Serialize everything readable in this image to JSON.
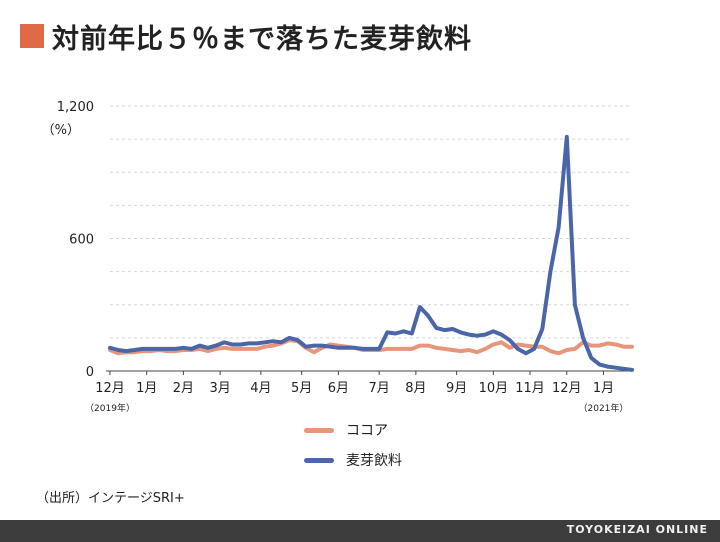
{
  "title": "対前年比５％まで落ちた麦芽飲料",
  "chart_data": {
    "type": "line",
    "title": "対前年比５％まで落ちた麦芽飲料",
    "ylabel": "（%）",
    "ylim": [
      0,
      1200
    ],
    "yticks": [
      {
        "value": 0,
        "label": "0"
      },
      {
        "value": 600,
        "label": "600"
      },
      {
        "value": 1200,
        "label": "1,200"
      }
    ],
    "grid": true,
    "legend_position": "bottom",
    "x_ticks": [
      {
        "label": "12月",
        "index": 0
      },
      {
        "label": "1月",
        "index": 4.5
      },
      {
        "label": "2月",
        "index": 9
      },
      {
        "label": "3月",
        "index": 13.5
      },
      {
        "label": "4月",
        "index": 18.5
      },
      {
        "label": "5月",
        "index": 23.5
      },
      {
        "label": "6月",
        "index": 28
      },
      {
        "label": "7月",
        "index": 33
      },
      {
        "label": "8月",
        "index": 37.5
      },
      {
        "label": "9月",
        "index": 42.5
      },
      {
        "label": "10月",
        "index": 47
      },
      {
        "label": "11月",
        "index": 51.5
      },
      {
        "label": "12月",
        "index": 56
      },
      {
        "label": "1月",
        "index": 60.5
      }
    ],
    "year_labels": [
      {
        "label": "（2019年）",
        "index": 0
      },
      {
        "label": "（2021年）",
        "index": 60.5
      }
    ],
    "series": [
      {
        "name": "ココア",
        "color": "#e8967a",
        "values": [
          95,
          80,
          85,
          85,
          90,
          90,
          95,
          90,
          90,
          95,
          95,
          100,
          90,
          100,
          105,
          100,
          100,
          100,
          100,
          110,
          115,
          125,
          140,
          135,
          105,
          85,
          105,
          120,
          115,
          110,
          105,
          95,
          95,
          95,
          100,
          100,
          100,
          100,
          115,
          115,
          105,
          100,
          95,
          90,
          95,
          85,
          100,
          120,
          130,
          105,
          120,
          115,
          110,
          110,
          90,
          80,
          95,
          100,
          130,
          115,
          115,
          125,
          120,
          110,
          110
        ]
      },
      {
        "name": "麦芽飲料",
        "color": "#4a66a8",
        "values": [
          105,
          95,
          90,
          95,
          100,
          100,
          100,
          100,
          100,
          105,
          100,
          115,
          105,
          115,
          130,
          120,
          120,
          125,
          125,
          130,
          135,
          130,
          150,
          140,
          110,
          115,
          115,
          110,
          105,
          105,
          105,
          100,
          100,
          100,
          175,
          170,
          180,
          170,
          290,
          250,
          195,
          185,
          190,
          175,
          165,
          160,
          165,
          180,
          165,
          140,
          100,
          80,
          100,
          190,
          450,
          650,
          1060,
          300,
          150,
          60,
          30,
          20,
          15,
          10,
          5
        ]
      }
    ]
  },
  "legend": [
    {
      "label": "ココア",
      "color": "#e8967a"
    },
    {
      "label": "麦芽飲料",
      "color": "#4a66a8"
    }
  ],
  "source": "（出所）インテージSRI+",
  "footer": "TOYOKEIZAI ONLINE"
}
